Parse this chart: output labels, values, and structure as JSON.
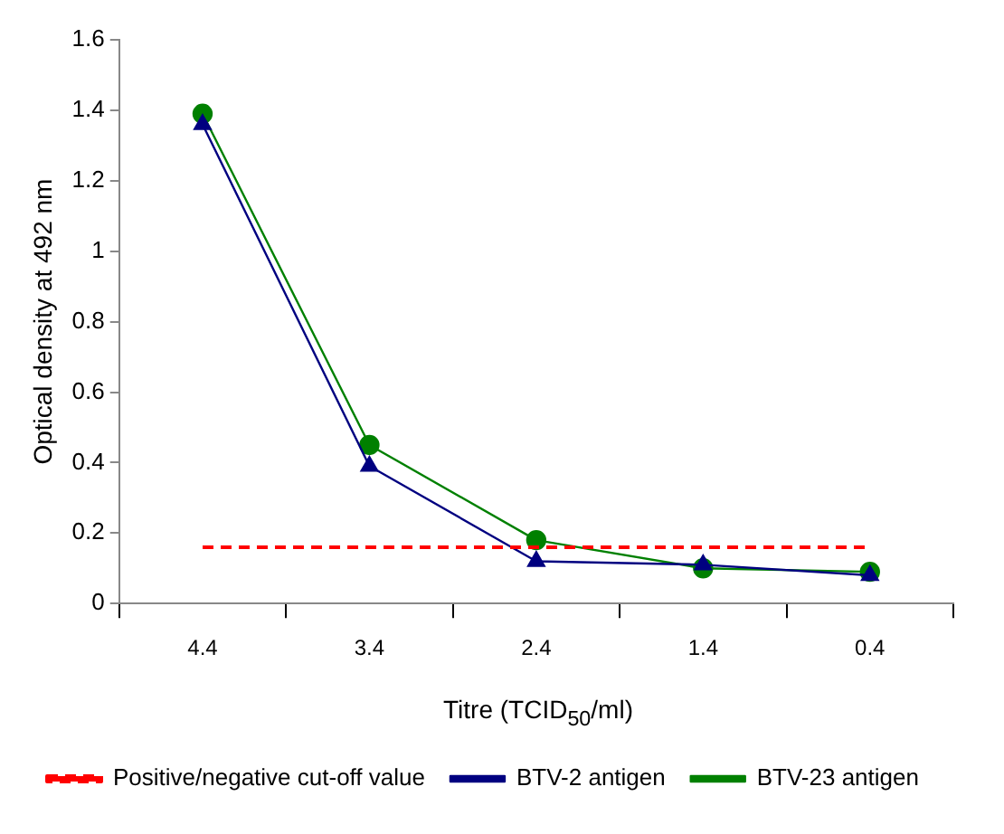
{
  "chart_data": {
    "type": "line",
    "xlabel": "Titre (TCID$_{50}$/ml)",
    "ylabel": "Optical density at 492 nm",
    "categories": [
      "4.4",
      "3.4",
      "2.4",
      "1.4",
      "0.4"
    ],
    "series": [
      {
        "name": "BTV-23 antigen",
        "color": "#008000",
        "marker": "circle",
        "values": [
          1.39,
          0.45,
          0.18,
          0.1,
          0.09
        ]
      },
      {
        "name": "BTV-2 antigen",
        "color": "#000080",
        "marker": "triangle",
        "values": [
          1.36,
          0.39,
          0.12,
          0.11,
          0.08
        ]
      },
      {
        "name": "Positive/negative cut-off value",
        "color": "#ff0000",
        "marker": "none",
        "line_style": "dashed",
        "values": [
          0.16,
          0.16,
          0.16,
          0.16,
          0.16
        ]
      }
    ],
    "ylim": [
      0,
      1.6
    ],
    "yticks": [
      0,
      0.2,
      0.4,
      0.6,
      0.8,
      1,
      1.2,
      1.4,
      1.6
    ],
    "grid": false,
    "legend": "bottom"
  }
}
